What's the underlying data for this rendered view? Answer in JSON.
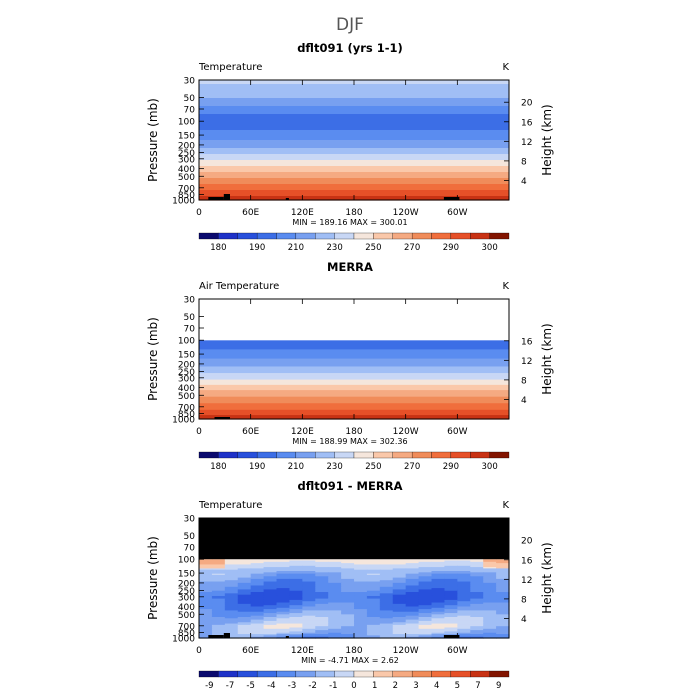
{
  "page_title": "DJF",
  "chart_data": [
    {
      "type": "heatmap",
      "title": "dflt091 (yrs 1-1)",
      "variable_label": "Temperature",
      "units": "K",
      "ylabel": "Pressure (mb)",
      "y2label": "Height (km)",
      "xticks": [
        "0",
        "60E",
        "120E",
        "180",
        "120W",
        "60W"
      ],
      "yticks": [
        "30",
        "50",
        "70",
        "100",
        "150",
        "200",
        "250",
        "300",
        "400",
        "500",
        "700",
        "850",
        "1000"
      ],
      "height_ticks": [
        "20",
        "16",
        "12",
        "8",
        "4"
      ],
      "stats_text": "MIN = 189.16  MAX = 300.01",
      "colorbar_labels": [
        "180",
        "190",
        "210",
        "230",
        "250",
        "270",
        "290",
        "300"
      ],
      "colors": [
        "#0a0a6e",
        "#1e32c8",
        "#2850dc",
        "#3c6ee6",
        "#5a8cf0",
        "#78a0f0",
        "#a0bef5",
        "#c8d7f5",
        "#f5e6dc",
        "#fac8aa",
        "#f5aa82",
        "#f08c5a",
        "#f06e3c",
        "#e65028",
        "#c83214",
        "#821400"
      ],
      "profile": [
        [
          30,
          236
        ],
        [
          50,
          226
        ],
        [
          70,
          214
        ],
        [
          100,
          206
        ],
        [
          150,
          213
        ],
        [
          200,
          223
        ],
        [
          250,
          232
        ],
        [
          300,
          239
        ],
        [
          400,
          253
        ],
        [
          500,
          262
        ],
        [
          700,
          276
        ],
        [
          850,
          284
        ],
        [
          1000,
          293
        ]
      ],
      "masked_above": null,
      "topo": [
        [
          0.03,
          0.08,
          3
        ],
        [
          0.08,
          0.1,
          6
        ],
        [
          0.28,
          0.29,
          2
        ],
        [
          0.79,
          0.84,
          3
        ]
      ]
    },
    {
      "type": "heatmap",
      "title": "MERRA",
      "variable_label": "Air Temperature",
      "units": "K",
      "ylabel": "Pressure (mb)",
      "y2label": "Height (km)",
      "xticks": [
        "0",
        "60E",
        "120E",
        "180",
        "120W",
        "60W"
      ],
      "yticks": [
        "30",
        "50",
        "70",
        "100",
        "150",
        "200",
        "250",
        "300",
        "400",
        "500",
        "700",
        "850",
        "1000"
      ],
      "height_ticks": [
        "16",
        "12",
        "8",
        "4"
      ],
      "stats_text": "MIN = 188.99  MAX = 302.36",
      "colorbar_labels": [
        "180",
        "190",
        "210",
        "230",
        "250",
        "270",
        "290",
        "300"
      ],
      "colors": [
        "#0a0a6e",
        "#1e32c8",
        "#2850dc",
        "#3c6ee6",
        "#5a8cf0",
        "#78a0f0",
        "#a0bef5",
        "#c8d7f5",
        "#f5e6dc",
        "#fac8aa",
        "#f5aa82",
        "#f08c5a",
        "#f06e3c",
        "#e65028",
        "#c83214",
        "#821400"
      ],
      "profile": [
        [
          100,
          206
        ],
        [
          150,
          213
        ],
        [
          200,
          223
        ],
        [
          250,
          232
        ],
        [
          300,
          239
        ],
        [
          400,
          253
        ],
        [
          500,
          262
        ],
        [
          700,
          276
        ],
        [
          850,
          284
        ],
        [
          1000,
          295
        ]
      ],
      "masked_above": "white",
      "topo": [
        [
          0.05,
          0.1,
          2
        ]
      ]
    },
    {
      "type": "heatmap",
      "title": "dflt091 - MERRA",
      "variable_label": "Temperature",
      "units": "K",
      "ylabel": "Pressure (mb)",
      "y2label": "Height (km)",
      "xticks": [
        "0",
        "60E",
        "120E",
        "180",
        "120W",
        "60W"
      ],
      "yticks": [
        "30",
        "50",
        "70",
        "100",
        "150",
        "200",
        "250",
        "300",
        "400",
        "500",
        "700",
        "850",
        "1000"
      ],
      "height_ticks": [
        "20",
        "16",
        "12",
        "8",
        "4"
      ],
      "stats_text": "MIN = -4.71  MAX = 2.62",
      "colorbar_labels": [
        "-9",
        "-7",
        "-5",
        "-4",
        "-3",
        "-2",
        "-1",
        "0",
        "1",
        "2",
        "3",
        "4",
        "5",
        "7",
        "9"
      ],
      "colors": [
        "#0a0a6e",
        "#1e32c8",
        "#2850dc",
        "#3c6ee6",
        "#5a8cf0",
        "#78a0f0",
        "#a0bef5",
        "#c8d7f5",
        "#f5e6dc",
        "#fac8aa",
        "#f5aa82",
        "#f08c5a",
        "#f06e3c",
        "#e65028",
        "#c83214",
        "#821400"
      ],
      "profile": [
        [
          100,
          0.5
        ],
        [
          150,
          -1.5
        ],
        [
          200,
          -2.5
        ],
        [
          250,
          -3.0
        ],
        [
          300,
          -3.6
        ],
        [
          400,
          -2.8
        ],
        [
          500,
          -1.8
        ],
        [
          700,
          -0.6
        ],
        [
          850,
          -1.2
        ],
        [
          1000,
          -2.5
        ]
      ],
      "masked_above": "black",
      "topo": [
        [
          0.03,
          0.08,
          3
        ],
        [
          0.08,
          0.1,
          5
        ],
        [
          0.28,
          0.29,
          2
        ],
        [
          0.79,
          0.84,
          3
        ]
      ]
    }
  ]
}
